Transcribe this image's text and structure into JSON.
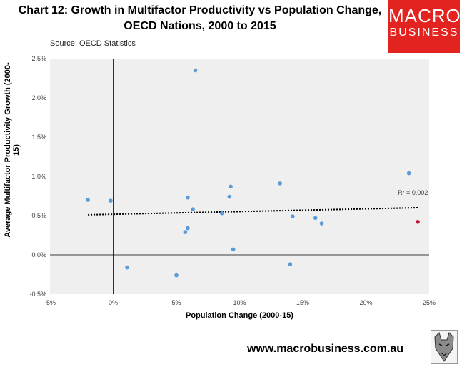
{
  "chart_data": {
    "type": "scatter",
    "title_line1": "Chart 12: Growth in Multifactor Productivity vs Population Change,",
    "title_line2": "OECD Nations, 2000 to 2015",
    "source": "Source: OECD Statistics",
    "xlabel": "Population Change (2000-15)",
    "ylabel": "Average Multifactor Productivity Growth (2000-15)",
    "xlim": [
      -5,
      25
    ],
    "ylim": [
      -0.5,
      2.5
    ],
    "x_ticks": [
      "-5%",
      "0%",
      "5%",
      "10%",
      "15%",
      "20%",
      "25%"
    ],
    "y_ticks": [
      "-0.5%",
      "0.0%",
      "0.5%",
      "1.0%",
      "1.5%",
      "2.0%",
      "2.5%"
    ],
    "grid": false,
    "points": [
      {
        "x": -2.0,
        "y": 0.7
      },
      {
        "x": -0.2,
        "y": 0.69
      },
      {
        "x": 1.1,
        "y": -0.16
      },
      {
        "x": 5.0,
        "y": -0.26
      },
      {
        "x": 5.7,
        "y": 0.29
      },
      {
        "x": 5.9,
        "y": 0.34
      },
      {
        "x": 5.9,
        "y": 0.73
      },
      {
        "x": 6.3,
        "y": 0.58
      },
      {
        "x": 6.5,
        "y": 2.35
      },
      {
        "x": 8.6,
        "y": 0.53
      },
      {
        "x": 9.2,
        "y": 0.74
      },
      {
        "x": 9.3,
        "y": 0.87
      },
      {
        "x": 9.5,
        "y": 0.07
      },
      {
        "x": 13.2,
        "y": 0.91
      },
      {
        "x": 14.0,
        "y": -0.12
      },
      {
        "x": 14.2,
        "y": 0.49
      },
      {
        "x": 16.0,
        "y": 0.47
      },
      {
        "x": 16.5,
        "y": 0.4
      },
      {
        "x": 23.4,
        "y": 1.04
      }
    ],
    "highlight_points": [
      {
        "x": 24.1,
        "y": 0.42
      }
    ],
    "trendline": {
      "x": [
        -2.0,
        24.1
      ],
      "y": [
        0.51,
        0.6
      ],
      "label": "R² = 0.002",
      "r_squared": 0.002
    },
    "colors": {
      "point": "#5b9bd5",
      "highlight": "#c0143c",
      "plot_bg": "#efefef",
      "trend": "#000000"
    }
  },
  "logo": {
    "line1": "MACRO",
    "line2": "BUSINESS",
    "color": "#e3231f"
  },
  "footer": {
    "url": "www.macrobusiness.com.au"
  }
}
